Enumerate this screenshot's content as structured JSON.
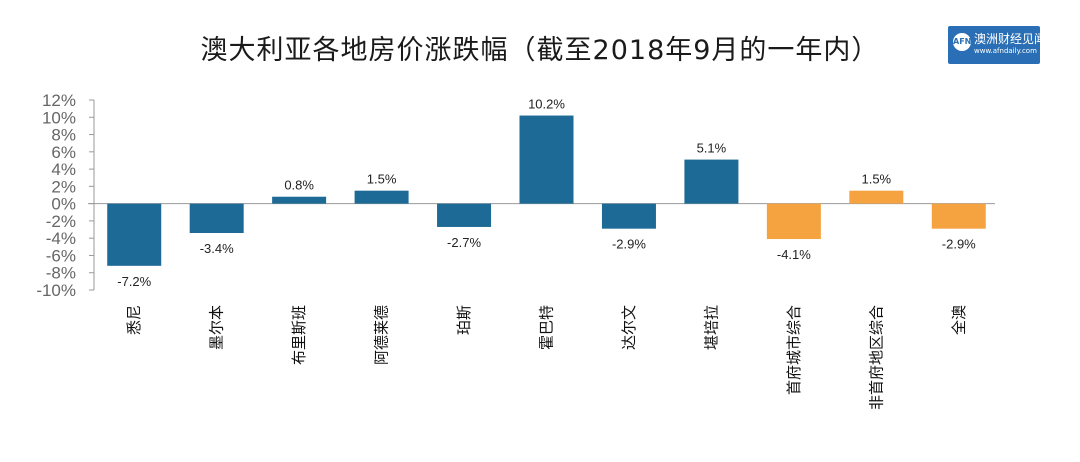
{
  "title": "澳大利亚各地房价涨跌幅（截至2018年9月的一年内）",
  "logo": {
    "name": "澳洲财经见闻",
    "url": "www.afndaily.com",
    "mark": "AFN"
  },
  "colors": {
    "primary": "#1d6a96",
    "secondary": "#f4a340",
    "axis": "#999999"
  },
  "chart_data": {
    "type": "bar",
    "title": "澳大利亚各地房价涨跌幅（截至2018年9月的一年内）",
    "xlabel": "",
    "ylabel": "",
    "ylim": [
      -10,
      12
    ],
    "yticks": [
      "-10%",
      "-8%",
      "-6%",
      "-4%",
      "-2%",
      "0%",
      "2%",
      "4%",
      "6%",
      "8%",
      "10%",
      "12%"
    ],
    "grid": false,
    "categories": [
      "悉尼",
      "墨尔本",
      "布里斯班",
      "阿德莱德",
      "珀斯",
      "霍巴特",
      "达尔文",
      "堪培拉",
      "首府城市综合",
      "非首府地区综合",
      "全澳"
    ],
    "values": [
      -7.2,
      -3.4,
      0.8,
      1.5,
      -2.7,
      10.2,
      -2.9,
      5.1,
      -4.1,
      1.5,
      -2.9
    ],
    "data_labels": [
      "-7.2%",
      "-3.4%",
      "0.8%",
      "1.5%",
      "-2.7%",
      "10.2%",
      "-2.9%",
      "5.1%",
      "-4.1%",
      "1.5%",
      "-2.9%"
    ],
    "bar_colors": [
      "#1d6a96",
      "#1d6a96",
      "#1d6a96",
      "#1d6a96",
      "#1d6a96",
      "#1d6a96",
      "#1d6a96",
      "#1d6a96",
      "#f4a340",
      "#f4a340",
      "#f4a340"
    ]
  }
}
